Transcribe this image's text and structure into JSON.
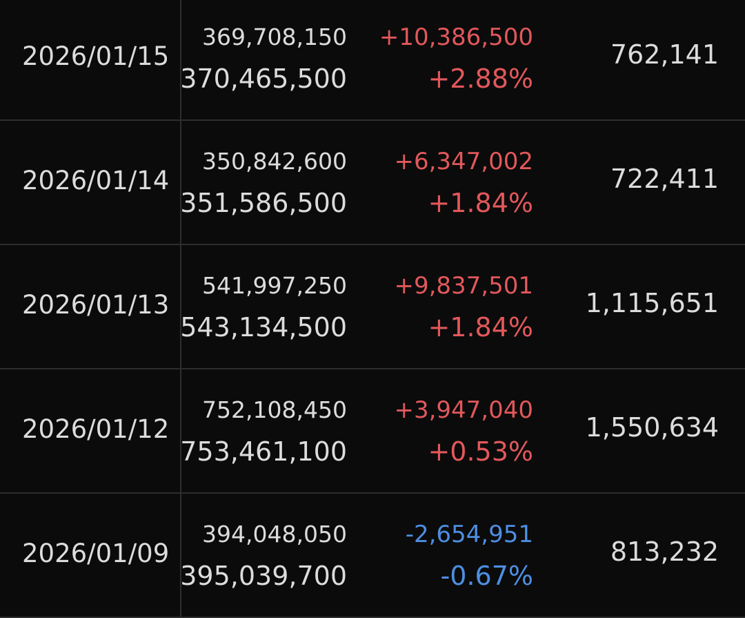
{
  "table": {
    "rows": [
      [
        "2026/01/15",
        "369,708,150",
        "370,465,500",
        "+10,386,500",
        "+2.88%",
        "762,141"
      ],
      [
        "2026/01/14",
        "350,842,600",
        "351,586,500",
        "+6,347,002",
        "+1.84%",
        "722,411"
      ],
      [
        "2026/01/13",
        "541,997,250",
        "543,134,500",
        "+9,837,501",
        "+1.84%",
        "1,115,651"
      ],
      [
        "2026/01/12",
        "752,108,450",
        "753,461,100",
        "+3,947,040",
        "+0.53%",
        "1,550,634"
      ],
      [
        "2026/01/09",
        "394,048,050",
        "395,039,700",
        "-2,654,951",
        "-0.67%",
        "813,232"
      ]
    ]
  }
}
